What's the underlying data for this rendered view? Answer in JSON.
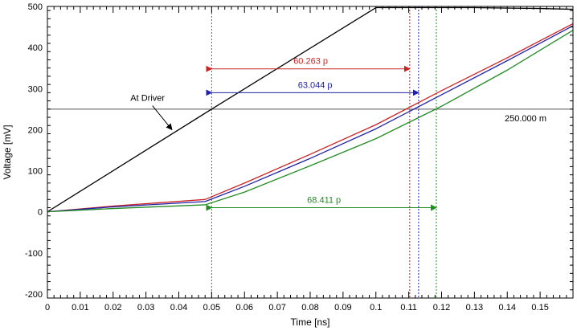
{
  "chart_data": {
    "type": "line",
    "xlabel": "Time [ns]",
    "ylabel": "Voltage [mV]",
    "xlim": [
      0,
      0.16
    ],
    "ylim": [
      -210,
      500
    ],
    "xticks": [
      0,
      0.01,
      0.02,
      0.03,
      0.04,
      0.05,
      0.06,
      0.07,
      0.08,
      0.09,
      0.1,
      0.11,
      0.12,
      0.13,
      0.14,
      0.15
    ],
    "xtick_labels": [
      "0",
      "0.01",
      "0.02",
      "0.03",
      "0.04",
      "0.05",
      "0.06",
      "0.07",
      "0.08",
      "0.09",
      "0.1",
      "0.11",
      "0.12",
      "0.13",
      "0.14",
      "0.15"
    ],
    "yticks": [
      -200,
      -100,
      0,
      100,
      200,
      300,
      400,
      500
    ],
    "ytick_labels": [
      "-200",
      "-100",
      "0",
      "100",
      "200",
      "300",
      "400",
      "500"
    ],
    "grid": false,
    "series": [
      {
        "color": "#000000",
        "x": [
          0,
          0.05,
          0.1,
          0.11,
          0.12,
          0.13,
          0.14,
          0.15,
          0.16
        ],
        "y": [
          0,
          250,
          497,
          497,
          497,
          497,
          496,
          495,
          493
        ]
      },
      {
        "color": "#cc2222",
        "x": [
          0,
          0.02,
          0.048,
          0.06,
          0.08,
          0.1,
          0.12,
          0.14,
          0.16
        ],
        "y": [
          0,
          14,
          30,
          70,
          140,
          212,
          295,
          375,
          458
        ]
      },
      {
        "color": "#2222aa",
        "x": [
          0,
          0.02,
          0.048,
          0.06,
          0.08,
          0.1,
          0.12,
          0.14,
          0.16
        ],
        "y": [
          0,
          12,
          25,
          62,
          130,
          202,
          285,
          368,
          453
        ]
      },
      {
        "color": "#228b22",
        "x": [
          0,
          0.02,
          0.048,
          0.06,
          0.08,
          0.1,
          0.12,
          0.14,
          0.16
        ],
        "y": [
          0,
          8,
          17,
          48,
          112,
          178,
          257,
          345,
          442
        ]
      }
    ],
    "threshold": {
      "y": 250,
      "label": "250.000 m",
      "color": "#555555"
    },
    "markers": [
      {
        "x": 0.05,
        "color": "#228b22"
      },
      {
        "x": 0.1103,
        "color": "#cc2222"
      },
      {
        "x": 0.113,
        "color": "#2222aa"
      },
      {
        "x": 0.1184,
        "color": "#228b22"
      }
    ],
    "measurements": [
      {
        "x1": 0.05,
        "x2": 0.1103,
        "y": 348,
        "label": "60.263 p",
        "color": "#cc2222"
      },
      {
        "x1": 0.05,
        "x2": 0.113,
        "y": 290,
        "label": "63.044 p",
        "color": "#2222aa"
      },
      {
        "x1": 0.05,
        "x2": 0.1184,
        "y": 10,
        "label": "68.411 p",
        "color": "#228b22"
      }
    ],
    "annotations": [
      {
        "text": "At Driver",
        "arrow_to": [
          0.0379,
          200
        ],
        "at": [
          0.0305,
          270
        ]
      }
    ]
  }
}
